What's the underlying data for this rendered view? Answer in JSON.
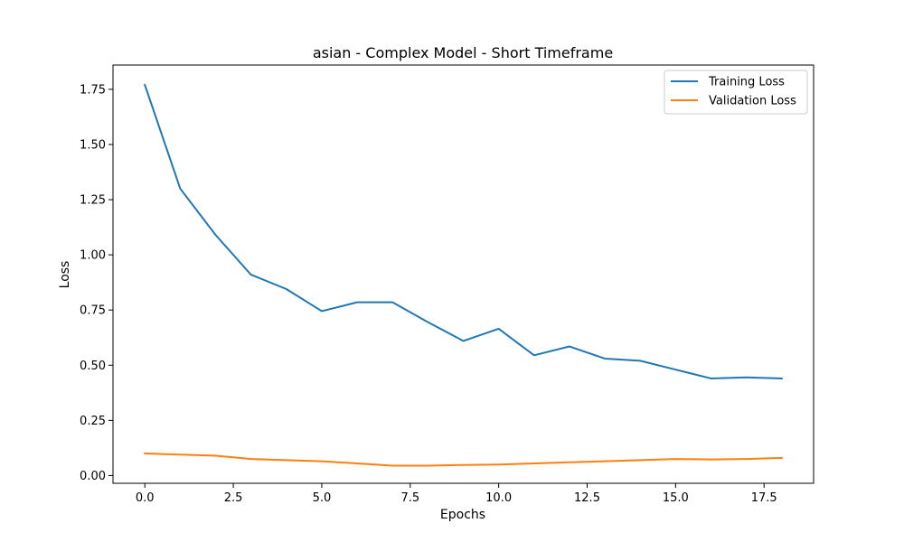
{
  "chart_data": {
    "type": "line",
    "title": "asian - Complex Model - Short Timeframe",
    "xlabel": "Epochs",
    "ylabel": "Loss",
    "xlim": [
      -0.9,
      18.9
    ],
    "ylim": [
      -0.035,
      1.86
    ],
    "xticks": [
      0.0,
      2.5,
      5.0,
      7.5,
      10.0,
      12.5,
      15.0,
      17.5
    ],
    "xtick_labels": [
      "0.0",
      "2.5",
      "5.0",
      "7.5",
      "10.0",
      "12.5",
      "15.0",
      "17.5"
    ],
    "yticks": [
      0.0,
      0.25,
      0.5,
      0.75,
      1.0,
      1.25,
      1.5,
      1.75
    ],
    "ytick_labels": [
      "0.00",
      "0.25",
      "0.50",
      "0.75",
      "1.00",
      "1.25",
      "1.50",
      "1.75"
    ],
    "grid": false,
    "legend_position": "top-right",
    "x": [
      0,
      1,
      2,
      3,
      4,
      5,
      6,
      7,
      8,
      9,
      10,
      11,
      12,
      13,
      14,
      15,
      16,
      17,
      18
    ],
    "series": [
      {
        "name": "Training Loss",
        "color": "#1f77b4",
        "values": [
          1.77,
          1.3,
          1.09,
          0.91,
          0.845,
          0.745,
          0.785,
          0.785,
          0.695,
          0.61,
          0.665,
          0.545,
          0.585,
          0.53,
          0.52,
          0.48,
          0.44,
          0.445,
          0.44
        ]
      },
      {
        "name": "Validation Loss",
        "color": "#ff7f0e",
        "values": [
          0.1,
          0.095,
          0.09,
          0.075,
          0.07,
          0.065,
          0.055,
          0.045,
          0.045,
          0.048,
          0.05,
          0.055,
          0.06,
          0.065,
          0.07,
          0.075,
          0.073,
          0.075,
          0.08
        ]
      }
    ]
  }
}
